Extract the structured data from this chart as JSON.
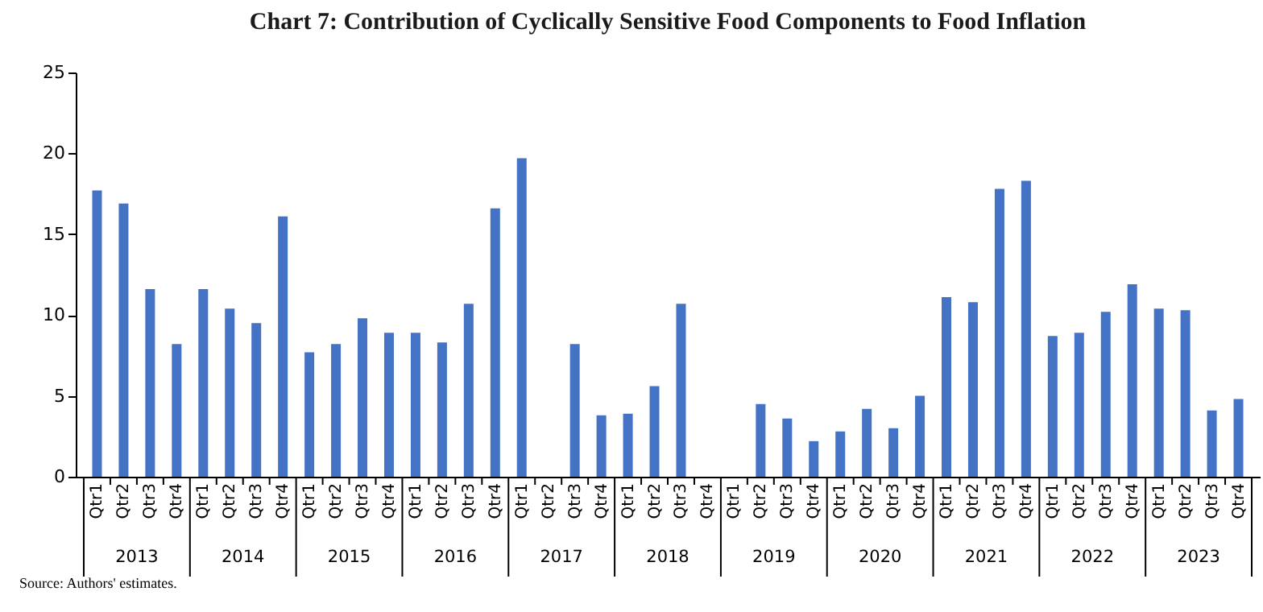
{
  "chart_data": {
    "type": "bar",
    "title": "Chart 7: Contribution of Cyclically Sensitive Food Components to Food Inflation",
    "categories": [
      "Qtr1",
      "Qtr2",
      "Qtr3",
      "Qtr4",
      "Qtr1",
      "Qtr2",
      "Qtr3",
      "Qtr4",
      "Qtr1",
      "Qtr2",
      "Qtr3",
      "Qtr4",
      "Qtr1",
      "Qtr2",
      "Qtr3",
      "Qtr4",
      "Qtr1",
      "Qtr2",
      "Qtr3",
      "Qtr4",
      "Qtr1",
      "Qtr2",
      "Qtr3",
      "Qtr4",
      "Qtr1",
      "Qtr2",
      "Qtr3",
      "Qtr4",
      "Qtr1",
      "Qtr2",
      "Qtr3",
      "Qtr4",
      "Qtr1",
      "Qtr2",
      "Qtr3",
      "Qtr4",
      "Qtr1",
      "Qtr2",
      "Qtr3",
      "Qtr4",
      "Qtr1",
      "Qtr2",
      "Qtr3",
      "Qtr4"
    ],
    "values": [
      17.7,
      16.9,
      11.6,
      8.2,
      11.6,
      10.4,
      9.5,
      16.1,
      7.7,
      8.2,
      9.8,
      8.9,
      8.9,
      8.3,
      10.7,
      16.6,
      19.7,
      null,
      8.2,
      3.8,
      3.9,
      5.6,
      10.7,
      null,
      null,
      4.5,
      3.6,
      2.2,
      2.8,
      4.2,
      3.0,
      5.0,
      11.1,
      10.8,
      17.8,
      18.3,
      8.7,
      8.9,
      10.2,
      11.9,
      10.4,
      10.3,
      4.1,
      4.8
    ],
    "color": "#4472c4",
    "ylim": [
      0,
      25
    ],
    "yticks": [
      0,
      5,
      10,
      15,
      20,
      25
    ],
    "grid": false,
    "annotations": [
      "2013",
      "2014",
      "2015",
      "2016",
      "2017",
      "2018",
      "2019",
      "2020",
      "2021",
      "2022",
      "2023",
      "Source: Authors' estimates."
    ]
  }
}
